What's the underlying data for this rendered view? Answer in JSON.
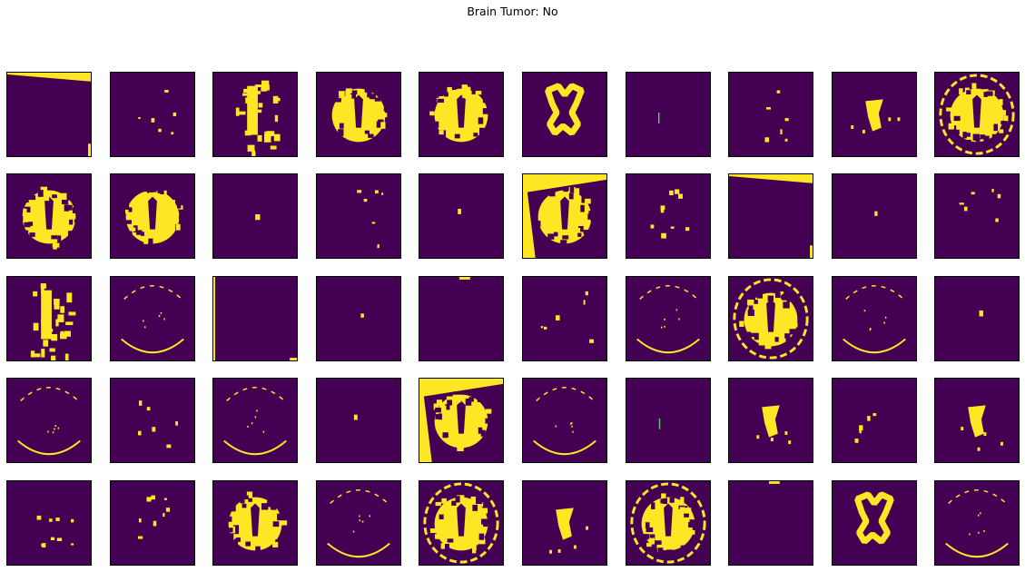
{
  "figure": {
    "title": "Brain Tumor: No"
  },
  "colors": {
    "background": "#440154",
    "foreground": "#fde725",
    "edge": "#5ec962"
  },
  "grid": {
    "rows": 5,
    "cols": 10
  },
  "panels": [
    {
      "pattern": "corner-wedge"
    },
    {
      "pattern": "sparse-dots"
    },
    {
      "pattern": "vertical-blobs"
    },
    {
      "pattern": "brain-blob"
    },
    {
      "pattern": "brain-blob"
    },
    {
      "pattern": "ring-shape"
    },
    {
      "pattern": "thin-line"
    },
    {
      "pattern": "sparse-dots"
    },
    {
      "pattern": "center-blob"
    },
    {
      "pattern": "brain-full"
    },
    {
      "pattern": "brain-blob"
    },
    {
      "pattern": "brain-blob"
    },
    {
      "pattern": "tiny-dot"
    },
    {
      "pattern": "sparse-dots"
    },
    {
      "pattern": "tiny-dot"
    },
    {
      "pattern": "rotated-brain"
    },
    {
      "pattern": "sparse-dots"
    },
    {
      "pattern": "corner-wedge"
    },
    {
      "pattern": "tiny-dot"
    },
    {
      "pattern": "sparse-dots"
    },
    {
      "pattern": "vertical-blobs"
    },
    {
      "pattern": "arc-edge"
    },
    {
      "pattern": "corner-line"
    },
    {
      "pattern": "tiny-dot"
    },
    {
      "pattern": "top-mark"
    },
    {
      "pattern": "sparse-dots"
    },
    {
      "pattern": "arc-ring"
    },
    {
      "pattern": "brain-full"
    },
    {
      "pattern": "arc-ring"
    },
    {
      "pattern": "tiny-dot"
    },
    {
      "pattern": "arc-ring"
    },
    {
      "pattern": "sparse-dots"
    },
    {
      "pattern": "arc-ring"
    },
    {
      "pattern": "tiny-dot"
    },
    {
      "pattern": "rotated-brain"
    },
    {
      "pattern": "arc-edge"
    },
    {
      "pattern": "thin-line"
    },
    {
      "pattern": "center-blob"
    },
    {
      "pattern": "sparse-dots"
    },
    {
      "pattern": "center-blob"
    },
    {
      "pattern": "sparse-dots"
    },
    {
      "pattern": "sparse-dots"
    },
    {
      "pattern": "brain-blob"
    },
    {
      "pattern": "arc-edge"
    },
    {
      "pattern": "brain-full"
    },
    {
      "pattern": "center-blob"
    },
    {
      "pattern": "brain-full"
    },
    {
      "pattern": "top-mark"
    },
    {
      "pattern": "ring-shape"
    },
    {
      "pattern": "arc-edge"
    }
  ]
}
